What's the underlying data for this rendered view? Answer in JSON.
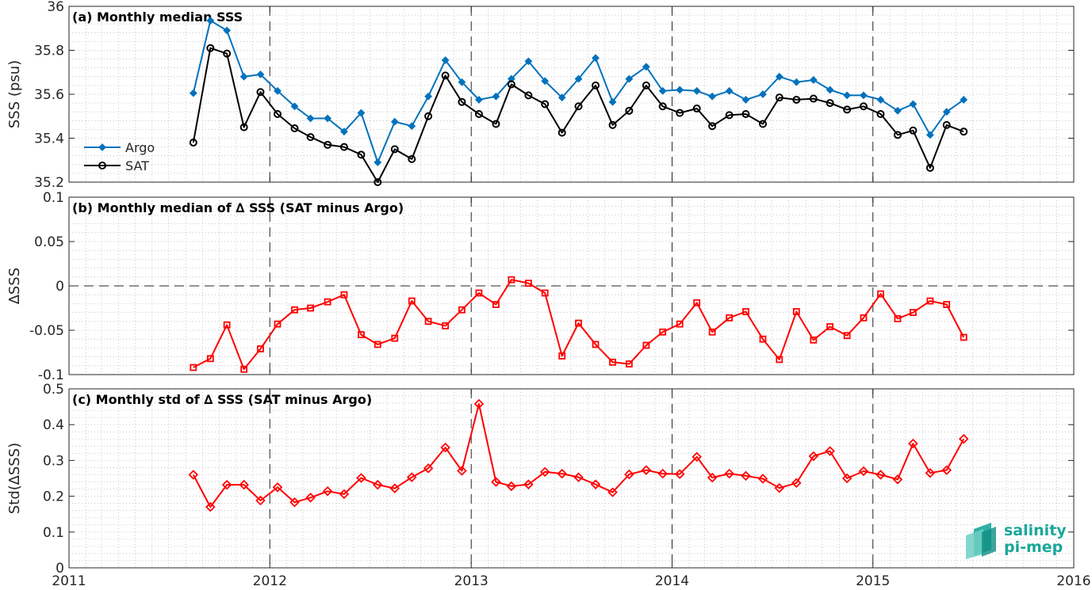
{
  "chart_data": [
    {
      "type": "line",
      "title": "(a) Monthly median SSS",
      "ylabel": "SSS (psu)",
      "xlim": [
        "2011-01-01",
        "2016-01-01"
      ],
      "ylim": [
        35.2,
        36
      ],
      "yticks": [
        "35.2",
        "35.4",
        "35.6",
        "35.8",
        "36"
      ],
      "grid": true,
      "legend_position": "left",
      "x": [
        "2011-08-15",
        "2011-09-15",
        "2011-10-15",
        "2011-11-15",
        "2011-12-15",
        "2012-01-15",
        "2012-02-15",
        "2012-03-15",
        "2012-04-15",
        "2012-05-15",
        "2012-06-15",
        "2012-07-15",
        "2012-08-15",
        "2012-09-15",
        "2012-10-15",
        "2012-11-15",
        "2012-12-15",
        "2013-01-15",
        "2013-02-15",
        "2013-03-15",
        "2013-04-15",
        "2013-05-15",
        "2013-06-15",
        "2013-07-15",
        "2013-08-15",
        "2013-09-15",
        "2013-10-15",
        "2013-11-15",
        "2013-12-15",
        "2014-01-15",
        "2014-02-15",
        "2014-03-15",
        "2014-04-15",
        "2014-05-15",
        "2014-06-15",
        "2014-07-15",
        "2014-08-15",
        "2014-09-15",
        "2014-10-15",
        "2014-11-15",
        "2014-12-15",
        "2015-01-15",
        "2015-02-15",
        "2015-03-15",
        "2015-04-15",
        "2015-05-15",
        "2015-06-15"
      ],
      "series": [
        {
          "name": "Argo",
          "color": "#0072BD",
          "marker": "diamond-filled",
          "values": [
            35.605,
            35.935,
            35.89,
            35.68,
            35.69,
            35.615,
            35.545,
            35.49,
            35.49,
            35.43,
            35.515,
            35.29,
            35.475,
            35.455,
            35.59,
            35.755,
            35.655,
            35.575,
            35.59,
            35.67,
            35.75,
            35.66,
            35.585,
            35.67,
            35.765,
            35.565,
            35.67,
            35.725,
            35.615,
            35.62,
            35.615,
            35.59,
            35.615,
            35.575,
            35.6,
            35.68,
            35.655,
            35.665,
            35.62,
            35.595,
            35.595,
            35.575,
            35.525,
            35.555,
            35.415,
            35.52,
            35.575
          ]
        },
        {
          "name": "SAT",
          "color": "#000000",
          "marker": "circle-open",
          "values": [
            35.38,
            35.81,
            35.785,
            35.45,
            35.61,
            35.51,
            35.445,
            35.405,
            35.37,
            35.36,
            35.325,
            35.2,
            35.35,
            35.305,
            35.5,
            35.685,
            35.565,
            35.51,
            35.465,
            35.645,
            35.595,
            35.555,
            35.425,
            35.545,
            35.64,
            35.46,
            35.525,
            35.64,
            35.545,
            35.515,
            35.535,
            35.455,
            35.505,
            35.51,
            35.465,
            35.585,
            35.575,
            35.58,
            35.56,
            35.53,
            35.545,
            35.51,
            35.415,
            35.435,
            35.265,
            35.46,
            35.43
          ]
        }
      ]
    },
    {
      "type": "line",
      "title": "(b) Monthly median of ∆ SSS (SAT minus Argo)",
      "ylabel": "∆SSS",
      "xlim": [
        "2011-01-01",
        "2016-01-01"
      ],
      "ylim": [
        -0.1,
        0.1
      ],
      "yticks": [
        "-0.1",
        "-0.05",
        "0",
        "0.05",
        "0.1"
      ],
      "grid": true,
      "zero_line": true,
      "x": [
        "2011-08-15",
        "2011-09-15",
        "2011-10-15",
        "2011-11-15",
        "2011-12-15",
        "2012-01-15",
        "2012-02-15",
        "2012-03-15",
        "2012-04-15",
        "2012-05-15",
        "2012-06-15",
        "2012-07-15",
        "2012-08-15",
        "2012-09-15",
        "2012-10-15",
        "2012-11-15",
        "2012-12-15",
        "2013-01-15",
        "2013-02-15",
        "2013-03-15",
        "2013-04-15",
        "2013-05-15",
        "2013-06-15",
        "2013-07-15",
        "2013-08-15",
        "2013-09-15",
        "2013-10-15",
        "2013-11-15",
        "2013-12-15",
        "2014-01-15",
        "2014-02-15",
        "2014-03-15",
        "2014-04-15",
        "2014-05-15",
        "2014-06-15",
        "2014-07-15",
        "2014-08-15",
        "2014-09-15",
        "2014-10-15",
        "2014-11-15",
        "2014-12-15",
        "2015-01-15",
        "2015-02-15",
        "2015-03-15",
        "2015-04-15",
        "2015-05-15",
        "2015-06-15"
      ],
      "series": [
        {
          "color": "#FF0000",
          "marker": "square-open",
          "values": [
            -0.092,
            -0.082,
            -0.044,
            -0.094,
            -0.071,
            -0.043,
            -0.027,
            -0.025,
            -0.018,
            -0.01,
            -0.055,
            -0.066,
            -0.059,
            -0.017,
            -0.04,
            -0.045,
            -0.027,
            -0.008,
            -0.021,
            0.007,
            0.003,
            -0.008,
            -0.079,
            -0.042,
            -0.066,
            -0.086,
            -0.088,
            -0.067,
            -0.052,
            -0.043,
            -0.019,
            -0.052,
            -0.036,
            -0.029,
            -0.06,
            -0.083,
            -0.029,
            -0.061,
            -0.046,
            -0.056,
            -0.036,
            -0.009,
            -0.037,
            -0.03,
            -0.017,
            -0.021,
            -0.058
          ]
        }
      ]
    },
    {
      "type": "line",
      "title": "(c) Monthly std of ∆ SSS (SAT minus Argo)",
      "ylabel": "Std(∆SSS)",
      "xlim": [
        "2011-01-01",
        "2016-01-01"
      ],
      "ylim": [
        0,
        0.5
      ],
      "yticks": [
        "0",
        "0.1",
        "0.2",
        "0.3",
        "0.4",
        "0.5"
      ],
      "xticks": [
        "2011",
        "2012",
        "2013",
        "2014",
        "2015",
        "2016"
      ],
      "grid": true,
      "x": [
        "2011-08-15",
        "2011-09-15",
        "2011-10-15",
        "2011-11-15",
        "2011-12-15",
        "2012-01-15",
        "2012-02-15",
        "2012-03-15",
        "2012-04-15",
        "2012-05-15",
        "2012-06-15",
        "2012-07-15",
        "2012-08-15",
        "2012-09-15",
        "2012-10-15",
        "2012-11-15",
        "2012-12-15",
        "2013-01-15",
        "2013-02-15",
        "2013-03-15",
        "2013-04-15",
        "2013-05-15",
        "2013-06-15",
        "2013-07-15",
        "2013-08-15",
        "2013-09-15",
        "2013-10-15",
        "2013-11-15",
        "2013-12-15",
        "2014-01-15",
        "2014-02-15",
        "2014-03-15",
        "2014-04-15",
        "2014-05-15",
        "2014-06-15",
        "2014-07-15",
        "2014-08-15",
        "2014-09-15",
        "2014-10-15",
        "2014-11-15",
        "2014-12-15",
        "2015-01-15",
        "2015-02-15",
        "2015-03-15",
        "2015-04-15",
        "2015-05-15",
        "2015-06-15"
      ],
      "series": [
        {
          "color": "#FF0000",
          "marker": "diamond-open",
          "values": [
            0.26,
            0.17,
            0.232,
            0.232,
            0.188,
            0.225,
            0.183,
            0.196,
            0.214,
            0.206,
            0.251,
            0.232,
            0.222,
            0.253,
            0.278,
            0.336,
            0.271,
            0.458,
            0.24,
            0.228,
            0.233,
            0.268,
            0.263,
            0.253,
            0.233,
            0.211,
            0.261,
            0.273,
            0.263,
            0.262,
            0.31,
            0.252,
            0.263,
            0.257,
            0.249,
            0.223,
            0.237,
            0.312,
            0.326,
            0.25,
            0.27,
            0.26,
            0.247,
            0.347,
            0.265,
            0.273,
            0.36
          ]
        }
      ]
    }
  ],
  "logo": {
    "line1": "salinity",
    "line2": "pi-mep",
    "color": "#1aa79a"
  }
}
